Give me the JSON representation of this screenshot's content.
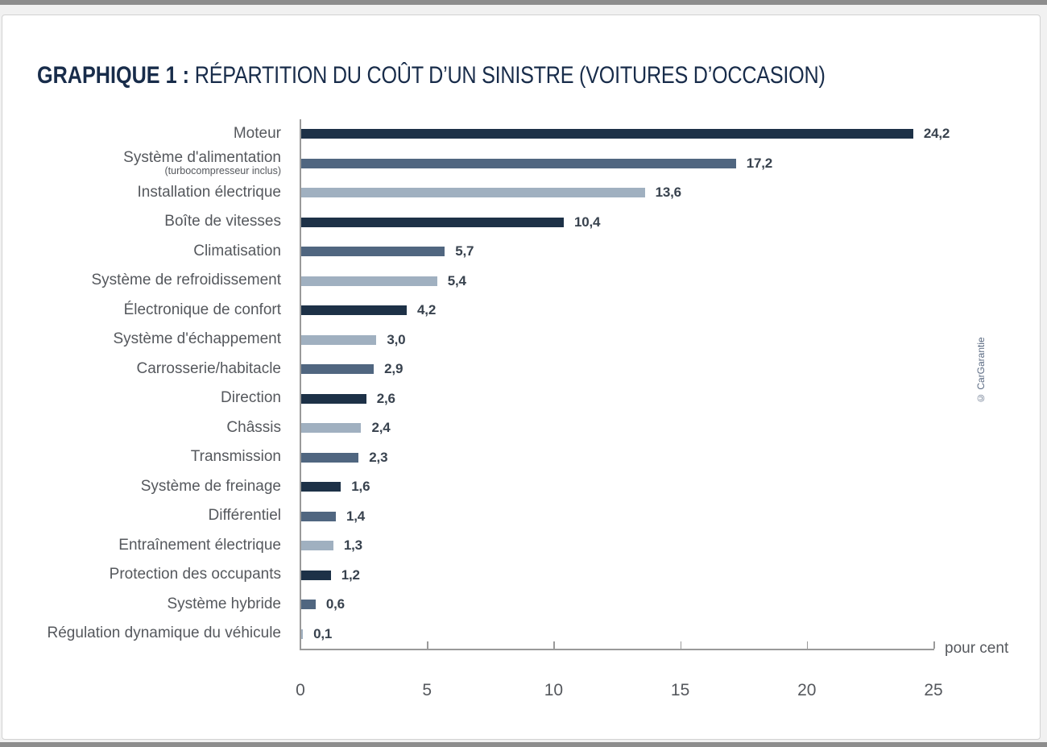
{
  "page": {
    "title_prefix": "GRAPHIQUE 1 :",
    "title_rest": "RÉPARTITION DU COÛT D’UN SINISTRE (VOITURES D’OCCASION)",
    "credit": "© CarGarantie"
  },
  "chart_data": {
    "type": "bar",
    "orientation": "horizontal",
    "title": "GRAPHIQUE 1 : RÉPARTITION DU COÛT D’UN SINISTRE (VOITURES D’OCCASION)",
    "xlabel": "pour cent",
    "xlim": [
      0,
      25
    ],
    "xticks": [
      0,
      5,
      10,
      15,
      20,
      25
    ],
    "grid": false,
    "legend": false,
    "palette": {
      "dark": "#1d3147",
      "medium": "#506680",
      "light": "#a0b0c0"
    },
    "axis_color": "#9a9a9a",
    "bars": [
      {
        "label": "Moteur",
        "sublabel": "",
        "value": 24.2,
        "display": "24,2",
        "shade": "dark"
      },
      {
        "label": "Système d'alimentation",
        "sublabel": "(turbocompresseur inclus)",
        "value": 17.2,
        "display": "17,2",
        "shade": "medium"
      },
      {
        "label": "Installation électrique",
        "sublabel": "",
        "value": 13.6,
        "display": "13,6",
        "shade": "light"
      },
      {
        "label": "Boîte de vitesses",
        "sublabel": "",
        "value": 10.4,
        "display": "10,4",
        "shade": "dark"
      },
      {
        "label": "Climatisation",
        "sublabel": "",
        "value": 5.7,
        "display": "5,7",
        "shade": "medium"
      },
      {
        "label": "Système de refroidissement",
        "sublabel": "",
        "value": 5.4,
        "display": "5,4",
        "shade": "light"
      },
      {
        "label": "Électronique de confort",
        "sublabel": "",
        "value": 4.2,
        "display": "4,2",
        "shade": "dark"
      },
      {
        "label": "Système d'échappement",
        "sublabel": "",
        "value": 3.0,
        "display": "3,0",
        "shade": "light"
      },
      {
        "label": "Carrosserie/habitacle",
        "sublabel": "",
        "value": 2.9,
        "display": "2,9",
        "shade": "medium"
      },
      {
        "label": "Direction",
        "sublabel": "",
        "value": 2.6,
        "display": "2,6",
        "shade": "dark"
      },
      {
        "label": "Châssis",
        "sublabel": "",
        "value": 2.4,
        "display": "2,4",
        "shade": "light"
      },
      {
        "label": "Transmission",
        "sublabel": "",
        "value": 2.3,
        "display": "2,3",
        "shade": "medium"
      },
      {
        "label": "Système de freinage",
        "sublabel": "",
        "value": 1.6,
        "display": "1,6",
        "shade": "dark"
      },
      {
        "label": "Différentiel",
        "sublabel": "",
        "value": 1.4,
        "display": "1,4",
        "shade": "medium"
      },
      {
        "label": "Entraînement électrique",
        "sublabel": "",
        "value": 1.3,
        "display": "1,3",
        "shade": "light"
      },
      {
        "label": "Protection des occupants",
        "sublabel": "",
        "value": 1.2,
        "display": "1,2",
        "shade": "dark"
      },
      {
        "label": "Système hybride",
        "sublabel": "",
        "value": 0.6,
        "display": "0,6",
        "shade": "medium"
      },
      {
        "label": "Régulation dynamique du véhicule",
        "sublabel": "",
        "value": 0.1,
        "display": "0,1",
        "shade": "light"
      }
    ]
  }
}
